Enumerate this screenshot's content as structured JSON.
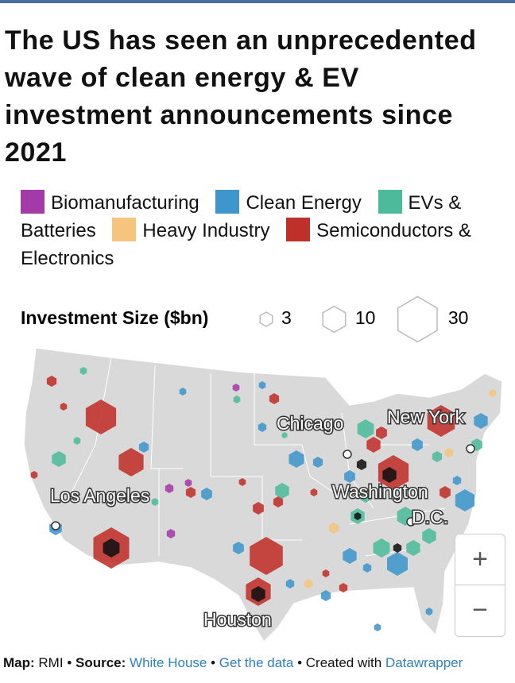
{
  "title": "The US has seen an unprecedented wave of clean energy & EV investment announcements since 2021",
  "legend": {
    "items": [
      {
        "label": "Biomanufacturing",
        "color": "#a43aa8"
      },
      {
        "label": "Clean Energy",
        "color": "#3f96cc"
      },
      {
        "label": "EVs & Batteries",
        "color": "#4cbb9b"
      },
      {
        "label": "Heavy Industry",
        "color": "#f5c57e"
      },
      {
        "label": "Semiconductors & Electronics",
        "color": "#c0302a"
      }
    ]
  },
  "size_legend": {
    "title": "Investment Size ($bn)",
    "items": [
      3,
      10,
      30
    ]
  },
  "cities": [
    "Chicago",
    "New York",
    "Los Angeles",
    "Washington",
    "D.C.",
    "Houston"
  ],
  "zoom": {
    "in": "+",
    "out": "−"
  },
  "footer": {
    "map_label": "Map:",
    "map": "RMI",
    "separator": "•",
    "source_label": "Source:",
    "source": "White House",
    "get_data": "Get the data",
    "created": "Created with",
    "tool": "Datawrapper"
  }
}
